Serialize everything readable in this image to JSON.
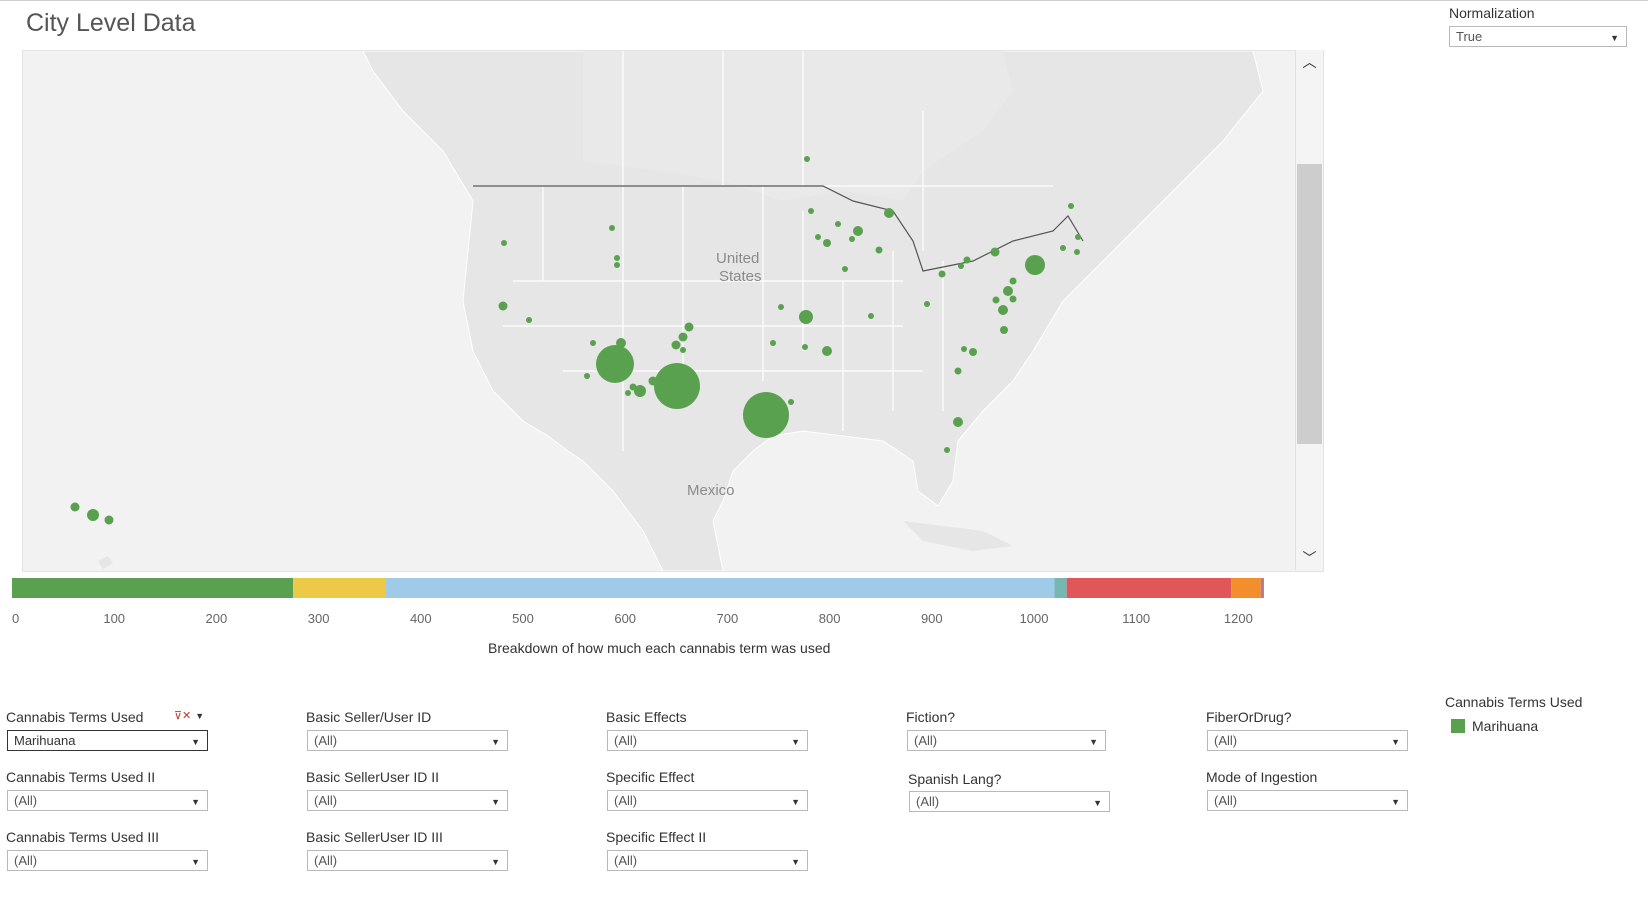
{
  "page": {
    "title": "City Level Data"
  },
  "normalization": {
    "label": "Normalization",
    "value": "True"
  },
  "map": {
    "labels": {
      "country_us": [
        "United",
        "States"
      ],
      "country_mx": "Mexico"
    },
    "bubble_color": "#59a14f",
    "scroll": {
      "up_icon": "chevron-up-icon",
      "down_icon": "chevron-down-icon"
    }
  },
  "breakdown_bar": {
    "caption": "Breakdown of how much each cannabis term was used",
    "ticks": [
      "0",
      "100",
      "200",
      "300",
      "400",
      "500",
      "600",
      "700",
      "800",
      "900",
      "1000",
      "1100",
      "1200"
    ],
    "axis_max": 1300,
    "segments": [
      {
        "color": "#59a14f",
        "start": 0,
        "end": 275
      },
      {
        "color": "#edc948",
        "start": 275,
        "end": 365
      },
      {
        "color": "#a0cbe8",
        "start": 365,
        "end": 1020
      },
      {
        "color": "#76b7b2",
        "start": 1020,
        "end": 1032
      },
      {
        "color": "#e15759",
        "start": 1032,
        "end": 1193
      },
      {
        "color": "#f28e2b",
        "start": 1193,
        "end": 1222
      },
      {
        "color": "#b07aa1",
        "start": 1222,
        "end": 1225
      }
    ]
  },
  "filters": {
    "terms1": {
      "label": "Cannabis Terms Used",
      "value": "Marihuana",
      "icon": "filter-clear-icon"
    },
    "terms2": {
      "label": "Cannabis Terms Used II",
      "value": "(All)"
    },
    "terms3": {
      "label": "Cannabis Terms Used III",
      "value": "(All)"
    },
    "seller1": {
      "label": "Basic Seller/User ID",
      "value": "(All)"
    },
    "seller2": {
      "label": "Basic SellerUser ID II",
      "value": "(All)"
    },
    "seller3": {
      "label": "Basic SellerUser ID III",
      "value": "(All)"
    },
    "effects": {
      "label": "Basic Effects",
      "value": "(All)"
    },
    "specific1": {
      "label": "Specific Effect",
      "value": "(All)"
    },
    "specific2": {
      "label": "Specific Effect II",
      "value": "(All)"
    },
    "fiction": {
      "label": "Fiction?",
      "value": "(All)"
    },
    "spanish": {
      "label": "Spanish Lang?",
      "value": "(All)"
    },
    "fiber": {
      "label": "FiberOrDrug?",
      "value": "(All)"
    },
    "ingestion": {
      "label": "Mode of Ingestion",
      "value": "(All)"
    }
  },
  "legend": {
    "title": "Cannabis Terms Used",
    "items": [
      {
        "label": "Marihuana",
        "color": "#59a14f"
      }
    ]
  }
}
